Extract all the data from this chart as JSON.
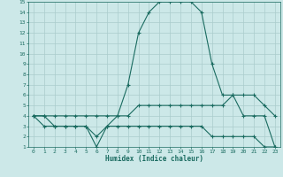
{
  "xlabel": "Humidex (Indice chaleur)",
  "bg_color": "#cce8e8",
  "line_color": "#1a6b60",
  "grid_color": "#aacccc",
  "xlim": [
    -0.5,
    23.5
  ],
  "ylim": [
    1,
    15
  ],
  "xticks": [
    0,
    1,
    2,
    3,
    4,
    5,
    6,
    7,
    8,
    9,
    10,
    11,
    12,
    13,
    14,
    15,
    16,
    17,
    18,
    19,
    20,
    21,
    22,
    23
  ],
  "yticks": [
    1,
    2,
    3,
    4,
    5,
    6,
    7,
    8,
    9,
    10,
    11,
    12,
    13,
    14,
    15
  ],
  "curve1_x": [
    0,
    1,
    2,
    3,
    4,
    5,
    6,
    7,
    8,
    9,
    10,
    11,
    12,
    13,
    14,
    15,
    16,
    17,
    18,
    19,
    20,
    21,
    22,
    23
  ],
  "curve1_y": [
    4,
    3,
    3,
    3,
    3,
    3,
    2,
    3,
    4,
    7,
    12,
    14,
    15,
    15,
    15,
    15,
    14,
    9,
    6,
    6,
    4,
    4,
    4,
    1
  ],
  "curve2_x": [
    0,
    1,
    2,
    3,
    4,
    5,
    6,
    7,
    8,
    9,
    10,
    11,
    12,
    13,
    14,
    15,
    16,
    17,
    18,
    19,
    20,
    21,
    22,
    23
  ],
  "curve2_y": [
    4,
    4,
    4,
    4,
    4,
    4,
    4,
    4,
    4,
    4,
    5,
    5,
    5,
    5,
    5,
    5,
    5,
    5,
    5,
    6,
    6,
    6,
    5,
    4
  ],
  "curve3_x": [
    0,
    1,
    2,
    3,
    4,
    5,
    6,
    7,
    8,
    9,
    10,
    11,
    12,
    13,
    14,
    15,
    16,
    17,
    18,
    19,
    20,
    21,
    22,
    23
  ],
  "curve3_y": [
    4,
    4,
    3,
    3,
    3,
    3,
    1,
    3,
    3,
    3,
    3,
    3,
    3,
    3,
    3,
    3,
    3,
    2,
    2,
    2,
    2,
    2,
    1,
    1
  ]
}
